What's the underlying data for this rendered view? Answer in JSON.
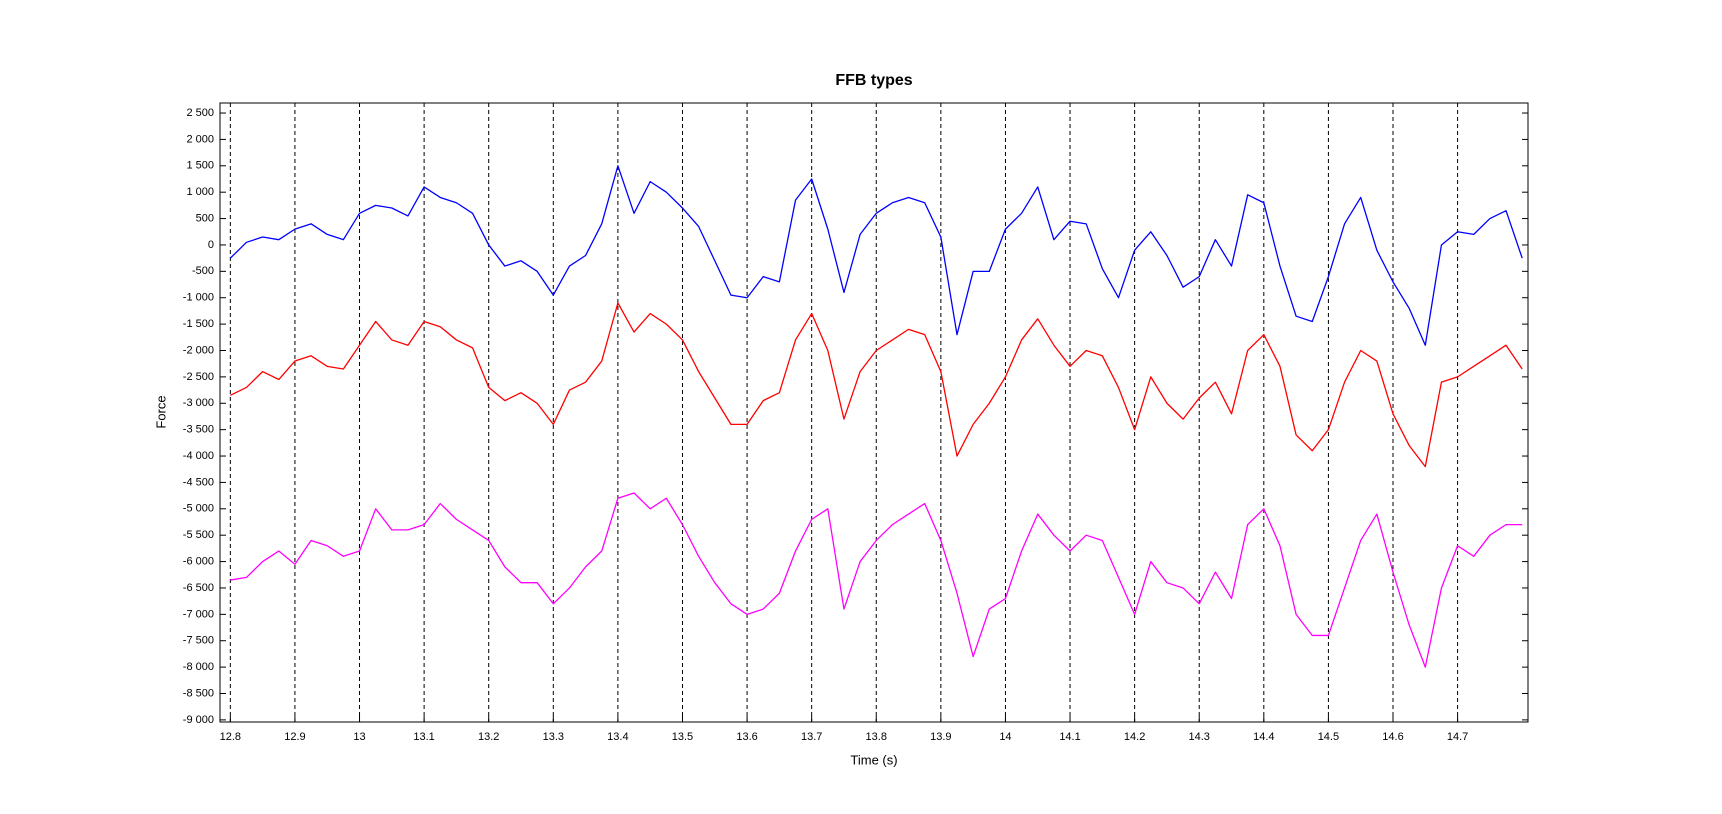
{
  "chart_data": {
    "type": "line",
    "title": "FFB types",
    "xlabel": "Time (s)",
    "ylabel": "Force",
    "x": [
      12.8,
      12.825,
      12.85,
      12.875,
      12.9,
      12.925,
      12.95,
      12.975,
      13.0,
      13.025,
      13.05,
      13.075,
      13.1,
      13.125,
      13.15,
      13.175,
      13.2,
      13.225,
      13.25,
      13.275,
      13.3,
      13.325,
      13.35,
      13.375,
      13.4,
      13.425,
      13.45,
      13.475,
      13.5,
      13.525,
      13.55,
      13.575,
      13.6,
      13.625,
      13.65,
      13.675,
      13.7,
      13.725,
      13.75,
      13.775,
      13.8,
      13.825,
      13.85,
      13.875,
      13.9,
      13.925,
      13.95,
      13.975,
      14.0,
      14.025,
      14.05,
      14.075,
      14.1,
      14.125,
      14.15,
      14.175,
      14.2,
      14.225,
      14.25,
      14.275,
      14.3,
      14.325,
      14.35,
      14.375,
      14.4,
      14.425,
      14.45,
      14.475,
      14.5,
      14.525,
      14.55,
      14.575,
      14.6,
      14.625,
      14.65,
      14.675,
      14.7,
      14.725,
      14.75,
      14.775,
      14.8
    ],
    "series": [
      {
        "color": "#0000ff",
        "values": [
          -250,
          50,
          150,
          100,
          300,
          400,
          200,
          100,
          600,
          750,
          700,
          550,
          1100,
          900,
          800,
          600,
          0,
          -400,
          -300,
          -500,
          -950,
          -400,
          -200,
          400,
          1500,
          600,
          1200,
          1000,
          700,
          350,
          -300,
          -950,
          -1000,
          -600,
          -700,
          850,
          1250,
          300,
          -900,
          200,
          600,
          800,
          900,
          800,
          150,
          -1700,
          -500,
          -500,
          300,
          600,
          1100,
          100,
          450,
          400,
          -450,
          -1000,
          -100,
          250,
          -200,
          -800,
          -600,
          100,
          -400,
          950,
          800,
          -400,
          -1350,
          -1450,
          -600,
          400,
          900,
          -100,
          -700,
          -1200,
          -1900,
          0,
          250,
          200,
          500,
          650,
          -250
        ]
      },
      {
        "color": "#ff0000",
        "values": [
          -2850,
          -2700,
          -2400,
          -2550,
          -2200,
          -2100,
          -2300,
          -2350,
          -1900,
          -1450,
          -1800,
          -1900,
          -1450,
          -1550,
          -1800,
          -1950,
          -2700,
          -2950,
          -2800,
          -3000,
          -3400,
          -2750,
          -2600,
          -2200,
          -1100,
          -1650,
          -1300,
          -1500,
          -1800,
          -2400,
          -2900,
          -3400,
          -3400,
          -2950,
          -2800,
          -1800,
          -1300,
          -2000,
          -3300,
          -2400,
          -2000,
          -1800,
          -1600,
          -1700,
          -2400,
          -4000,
          -3400,
          -3000,
          -2500,
          -1800,
          -1400,
          -1900,
          -2300,
          -2000,
          -2100,
          -2700,
          -3500,
          -2500,
          -3000,
          -3300,
          -2900,
          -2600,
          -3200,
          -2000,
          -1700,
          -2300,
          -3600,
          -3900,
          -3500,
          -2600,
          -2000,
          -2200,
          -3200,
          -3800,
          -4200,
          -2600,
          -2500,
          -2300,
          -2100,
          -1900,
          -2350
        ]
      },
      {
        "color": "#ff00ff",
        "values": [
          -6350,
          -6300,
          -6000,
          -5800,
          -6050,
          -5600,
          -5700,
          -5900,
          -5800,
          -5000,
          -5400,
          -5400,
          -5300,
          -4900,
          -5200,
          -5400,
          -5600,
          -6100,
          -6400,
          -6400,
          -6800,
          -6500,
          -6100,
          -5800,
          -4800,
          -4700,
          -5000,
          -4800,
          -5300,
          -5900,
          -6400,
          -6800,
          -7000,
          -6900,
          -6600,
          -5800,
          -5200,
          -5000,
          -6900,
          -6000,
          -5600,
          -5300,
          -5100,
          -4900,
          -5600,
          -6600,
          -7800,
          -6900,
          -6700,
          -5800,
          -5100,
          -5500,
          -5800,
          -5500,
          -5600,
          -6300,
          -7000,
          -6000,
          -6400,
          -6500,
          -6800,
          -6200,
          -6700,
          -5300,
          -5000,
          -5700,
          -7000,
          -7400,
          -7400,
          -6500,
          -5600,
          -5100,
          -6200,
          -7200,
          -8000,
          -6500,
          -5700,
          -5900,
          -5500,
          -5300,
          -5300
        ]
      }
    ],
    "xlim": [
      12.784,
      14.809
    ],
    "ylim": [
      -9040,
      2690
    ],
    "xticks": [
      12.8,
      12.9,
      13,
      13.1,
      13.2,
      13.3,
      13.4,
      13.5,
      13.6,
      13.7,
      13.8,
      13.9,
      14,
      14.1,
      14.2,
      14.3,
      14.4,
      14.5,
      14.6,
      14.7
    ],
    "yticks": [
      {
        "value": -9000,
        "label": "-9 000"
      },
      {
        "value": -8500,
        "label": "-8 500"
      },
      {
        "value": -8000,
        "label": "-8 000"
      },
      {
        "value": -7500,
        "label": "-7 500"
      },
      {
        "value": -7000,
        "label": "-7 000"
      },
      {
        "value": -6500,
        "label": "-6 500"
      },
      {
        "value": -6000,
        "label": "-6 000"
      },
      {
        "value": -5500,
        "label": "-5 500"
      },
      {
        "value": -5000,
        "label": "-5 000"
      },
      {
        "value": -4500,
        "label": "-4 500"
      },
      {
        "value": -4000,
        "label": "-4 000"
      },
      {
        "value": -3500,
        "label": "-3 500"
      },
      {
        "value": -3000,
        "label": "-3 000"
      },
      {
        "value": -2500,
        "label": "-2 500"
      },
      {
        "value": -2000,
        "label": "-2 000"
      },
      {
        "value": -1500,
        "label": "-1 500"
      },
      {
        "value": -1000,
        "label": "-1 000"
      },
      -500,
      0,
      500,
      {
        "value": 1000,
        "label": "1 000"
      },
      {
        "value": 1500,
        "label": "1 500"
      },
      {
        "value": 2000,
        "label": "2 000"
      },
      {
        "value": 2500,
        "label": "2 500"
      }
    ],
    "xgrid": true,
    "xgrid_style": "dashed"
  }
}
